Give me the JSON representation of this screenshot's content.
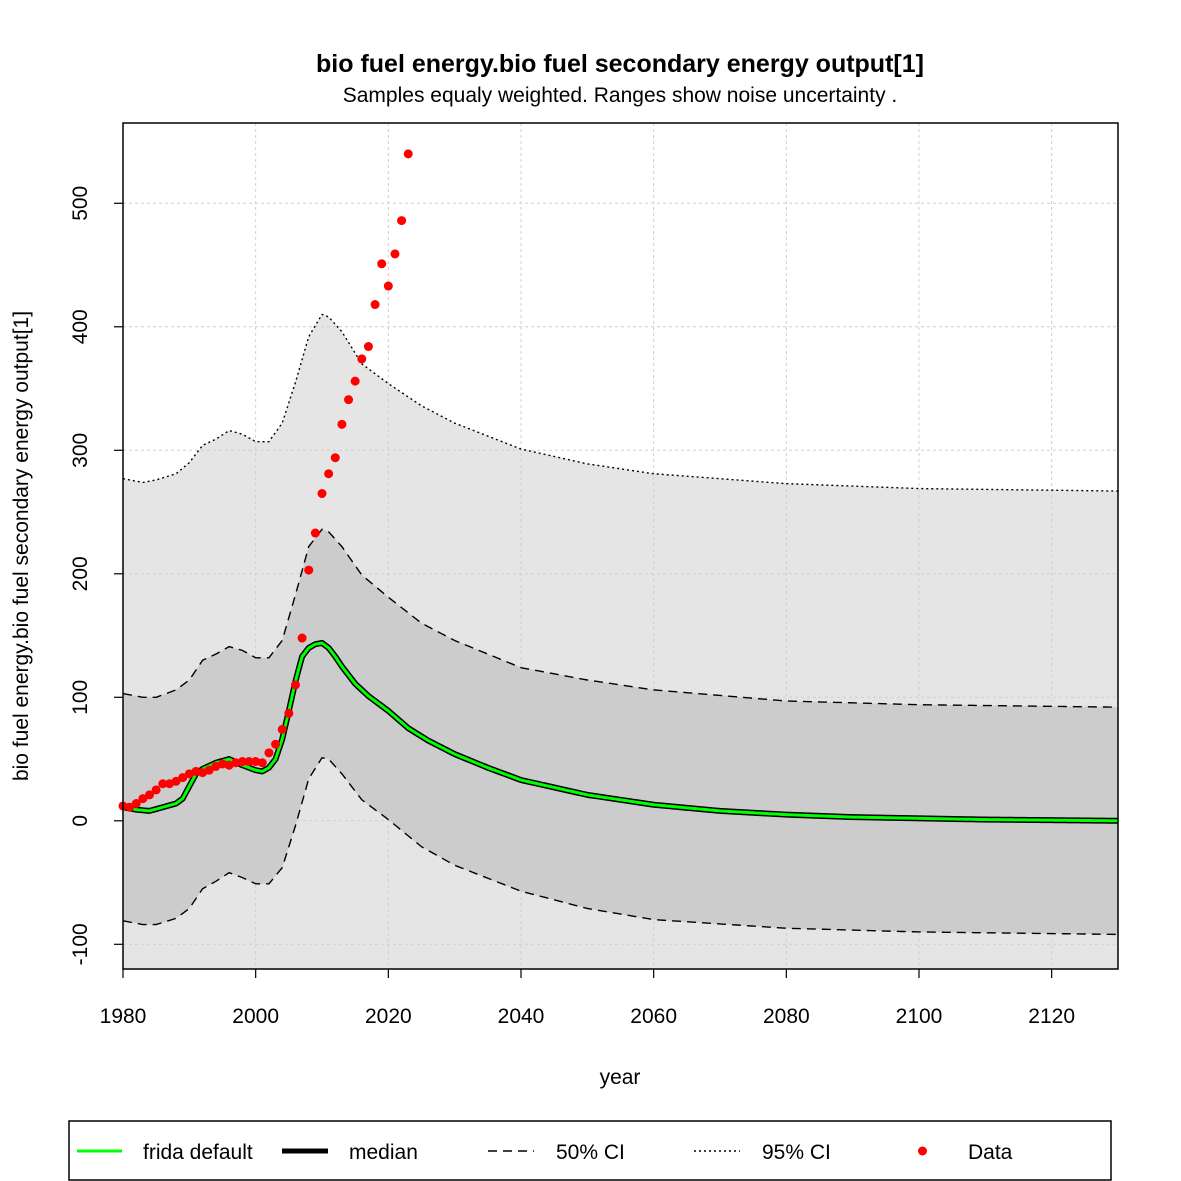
{
  "chart_data": {
    "type": "line",
    "title": "bio fuel energy.bio fuel secondary energy output[1]",
    "subtitle": "Samples equaly weighted. Ranges show  noise uncertainty .",
    "xlabel": "year",
    "ylabel": "bio fuel energy.bio fuel secondary energy output[1]",
    "xlim": [
      1980,
      2130
    ],
    "ylim": [
      -120,
      565
    ],
    "x_ticks": [
      1980,
      2000,
      2020,
      2040,
      2060,
      2080,
      2100,
      2120
    ],
    "y_ticks": [
      -100,
      0,
      100,
      200,
      300,
      400,
      500
    ],
    "grid": true,
    "legend_position": "bottom",
    "colors": {
      "frida_default": "#00ff00",
      "median": "#000000",
      "ci50_fill": "#cccccc",
      "ci95_fill": "#e5e5e5",
      "data": "#ff0000",
      "grid": "#cfcfcf"
    },
    "legend": [
      {
        "label": "frida default",
        "style": "line-green"
      },
      {
        "label": "median",
        "style": "line-black-thick"
      },
      {
        "label": "50% CI",
        "style": "dashed"
      },
      {
        "label": "95% CI",
        "style": "dotted"
      },
      {
        "label": "Data",
        "style": "point-red"
      }
    ],
    "series": [
      {
        "name": "95% CI upper",
        "x": [
          1980,
          1983,
          1985,
          1988,
          1990,
          1992,
          1994,
          1996,
          1998,
          2000,
          2002,
          2004,
          2006,
          2008,
          2010,
          2011,
          2013,
          2016,
          2020,
          2025,
          2030,
          2040,
          2050,
          2060,
          2080,
          2100,
          2130
        ],
        "values": [
          277,
          274,
          276,
          281,
          290,
          304,
          309,
          316,
          313,
          307,
          307,
          322,
          355,
          392,
          410,
          408,
          396,
          370,
          354,
          336,
          322,
          301,
          289,
          281,
          273,
          269,
          267
        ]
      },
      {
        "name": "95% CI lower",
        "x": [
          1980,
          2130
        ],
        "values": [
          -120,
          -120
        ]
      },
      {
        "name": "50% CI upper",
        "x": [
          1980,
          1983,
          1985,
          1988,
          1990,
          1992,
          1994,
          1996,
          1998,
          2000,
          2002,
          2004,
          2006,
          2008,
          2010,
          2011,
          2013,
          2016,
          2020,
          2025,
          2030,
          2040,
          2050,
          2060,
          2080,
          2100,
          2130
        ],
        "values": [
          103,
          100,
          100,
          106,
          114,
          130,
          135,
          141,
          138,
          132,
          132,
          146,
          183,
          222,
          236,
          234,
          222,
          199,
          181,
          160,
          146,
          124,
          114,
          106,
          97,
          94,
          92
        ]
      },
      {
        "name": "50% CI lower",
        "x": [
          1980,
          1983,
          1985,
          1988,
          1990,
          1992,
          1994,
          1996,
          1998,
          2000,
          2002,
          2004,
          2006,
          2008,
          2010,
          2011,
          2013,
          2016,
          2020,
          2025,
          2030,
          2040,
          2050,
          2060,
          2080,
          2100,
          2130
        ],
        "values": [
          -81,
          -84,
          -84,
          -79,
          -71,
          -55,
          -49,
          -42,
          -46,
          -51,
          -51,
          -38,
          -4,
          34,
          51,
          50,
          38,
          17,
          1,
          -21,
          -36,
          -57,
          -71,
          -80,
          -87,
          -90,
          -92
        ]
      },
      {
        "name": "frida default",
        "x": [
          1980,
          1982,
          1984,
          1986,
          1988,
          1989,
          1990,
          1991,
          1992,
          1994,
          1996,
          1998,
          2000,
          2001,
          2002,
          2003,
          2004,
          2005,
          2006,
          2007,
          2008,
          2009,
          2010,
          2011,
          2012,
          2013,
          2015,
          2017,
          2020,
          2023,
          2026,
          2030,
          2035,
          2040,
          2050,
          2060,
          2070,
          2080,
          2090,
          2100,
          2110,
          2130
        ],
        "values": [
          11,
          9,
          8,
          11,
          14,
          18,
          28,
          38,
          42,
          47,
          50,
          45,
          41,
          40,
          43,
          50,
          66,
          89,
          113,
          133,
          140,
          143,
          144,
          140,
          133,
          125,
          111,
          101,
          89,
          75,
          65,
          54,
          43,
          33,
          21,
          13,
          8,
          5,
          3,
          2,
          1,
          0
        ]
      },
      {
        "name": "median",
        "x": [
          1980,
          1982,
          1984,
          1986,
          1988,
          1989,
          1990,
          1991,
          1992,
          1994,
          1996,
          1998,
          2000,
          2001,
          2002,
          2003,
          2004,
          2005,
          2006,
          2007,
          2008,
          2009,
          2010,
          2011,
          2012,
          2013,
          2015,
          2017,
          2020,
          2023,
          2026,
          2030,
          2035,
          2040,
          2050,
          2060,
          2070,
          2080,
          2090,
          2100,
          2110,
          2130
        ],
        "values": [
          11,
          9,
          8,
          11,
          14,
          18,
          28,
          38,
          42,
          47,
          50,
          45,
          41,
          40,
          43,
          50,
          66,
          89,
          113,
          133,
          140,
          143,
          144,
          140,
          133,
          125,
          111,
          101,
          89,
          75,
          65,
          54,
          43,
          33,
          21,
          13,
          8,
          5,
          3,
          2,
          1,
          0
        ]
      },
      {
        "name": "Data",
        "x": [
          1980,
          1981,
          1982,
          1983,
          1984,
          1985,
          1986,
          1987,
          1988,
          1989,
          1990,
          1991,
          1992,
          1993,
          1994,
          1995,
          1996,
          1997,
          1998,
          1999,
          2000,
          2001,
          2002,
          2003,
          2004,
          2005,
          2006,
          2007,
          2008,
          2009,
          2010,
          2011,
          2012,
          2013,
          2014,
          2015,
          2016,
          2017,
          2018,
          2019,
          2020,
          2021,
          2022,
          2023
        ],
        "values": [
          12,
          11,
          14,
          18,
          21,
          25,
          30,
          30,
          32,
          35,
          38,
          40,
          39,
          41,
          44,
          46,
          45,
          47,
          48,
          48,
          48,
          47,
          55,
          62,
          74,
          87,
          110,
          148,
          203,
          233,
          265,
          281,
          294,
          321,
          341,
          356,
          374,
          384,
          418,
          451,
          433,
          459,
          486,
          540
        ]
      }
    ]
  }
}
